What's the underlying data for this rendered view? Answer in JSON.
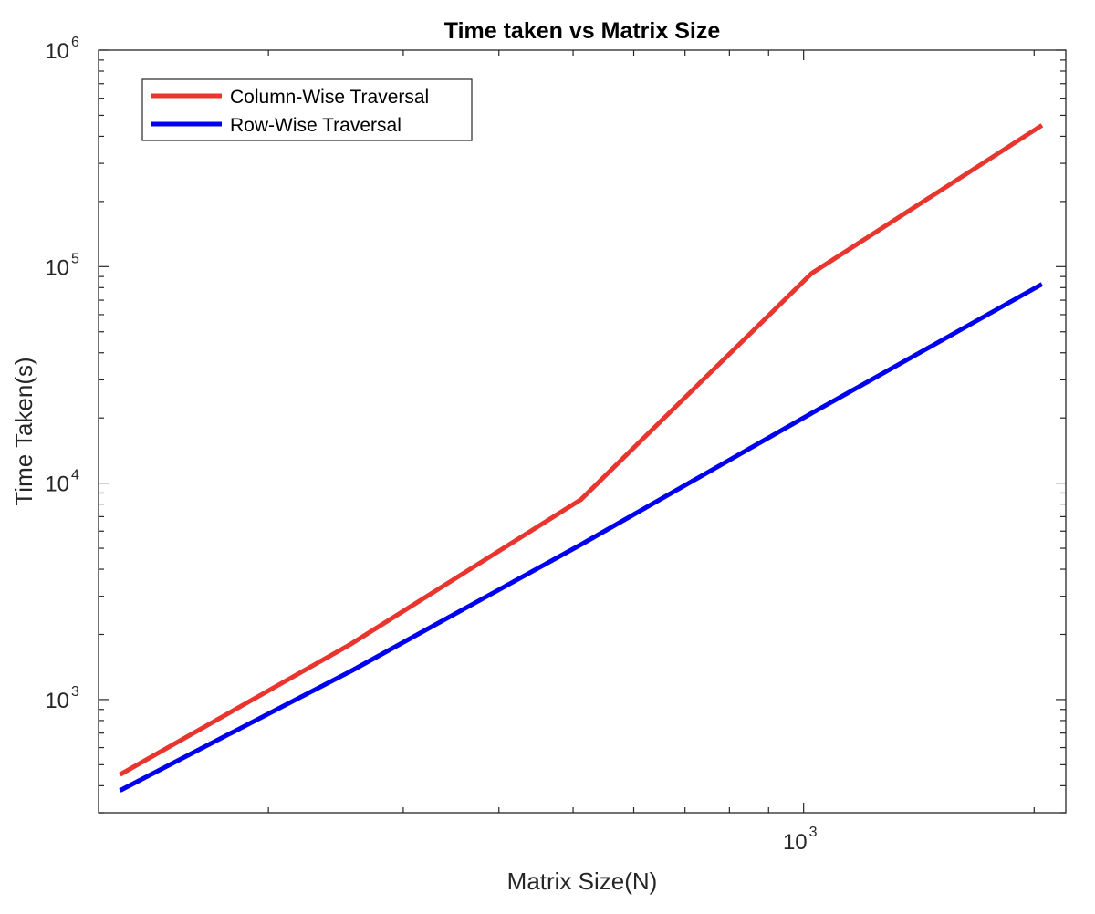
{
  "chart_data": {
    "type": "line",
    "title": "Time taken vs Matrix Size",
    "xlabel": "Matrix Size(N)",
    "ylabel": "Time Taken(s)",
    "xscale": "log",
    "yscale": "log",
    "xlim": [
      120,
      2200
    ],
    "ylim": [
      300,
      1000000
    ],
    "x_tick_labels": [
      {
        "value": 1000,
        "base": "10",
        "exp": "3"
      }
    ],
    "y_tick_labels": [
      {
        "value": 1000,
        "base": "10",
        "exp": "3"
      },
      {
        "value": 10000,
        "base": "10",
        "exp": "4"
      },
      {
        "value": 100000,
        "base": "10",
        "exp": "5"
      },
      {
        "value": 1000000,
        "base": "10",
        "exp": "6"
      }
    ],
    "grid": false,
    "legend_position": "top-left",
    "x": [
      128,
      256,
      512,
      1024,
      2048
    ],
    "series": [
      {
        "name": "Column-Wise Traversal",
        "color": "#e8352e",
        "values": [
          450,
          1800,
          8400,
          93000,
          450000
        ]
      },
      {
        "name": "Row-Wise Traversal",
        "color": "#0000f0",
        "values": [
          380,
          1350,
          5200,
          21000,
          83000
        ]
      }
    ]
  }
}
